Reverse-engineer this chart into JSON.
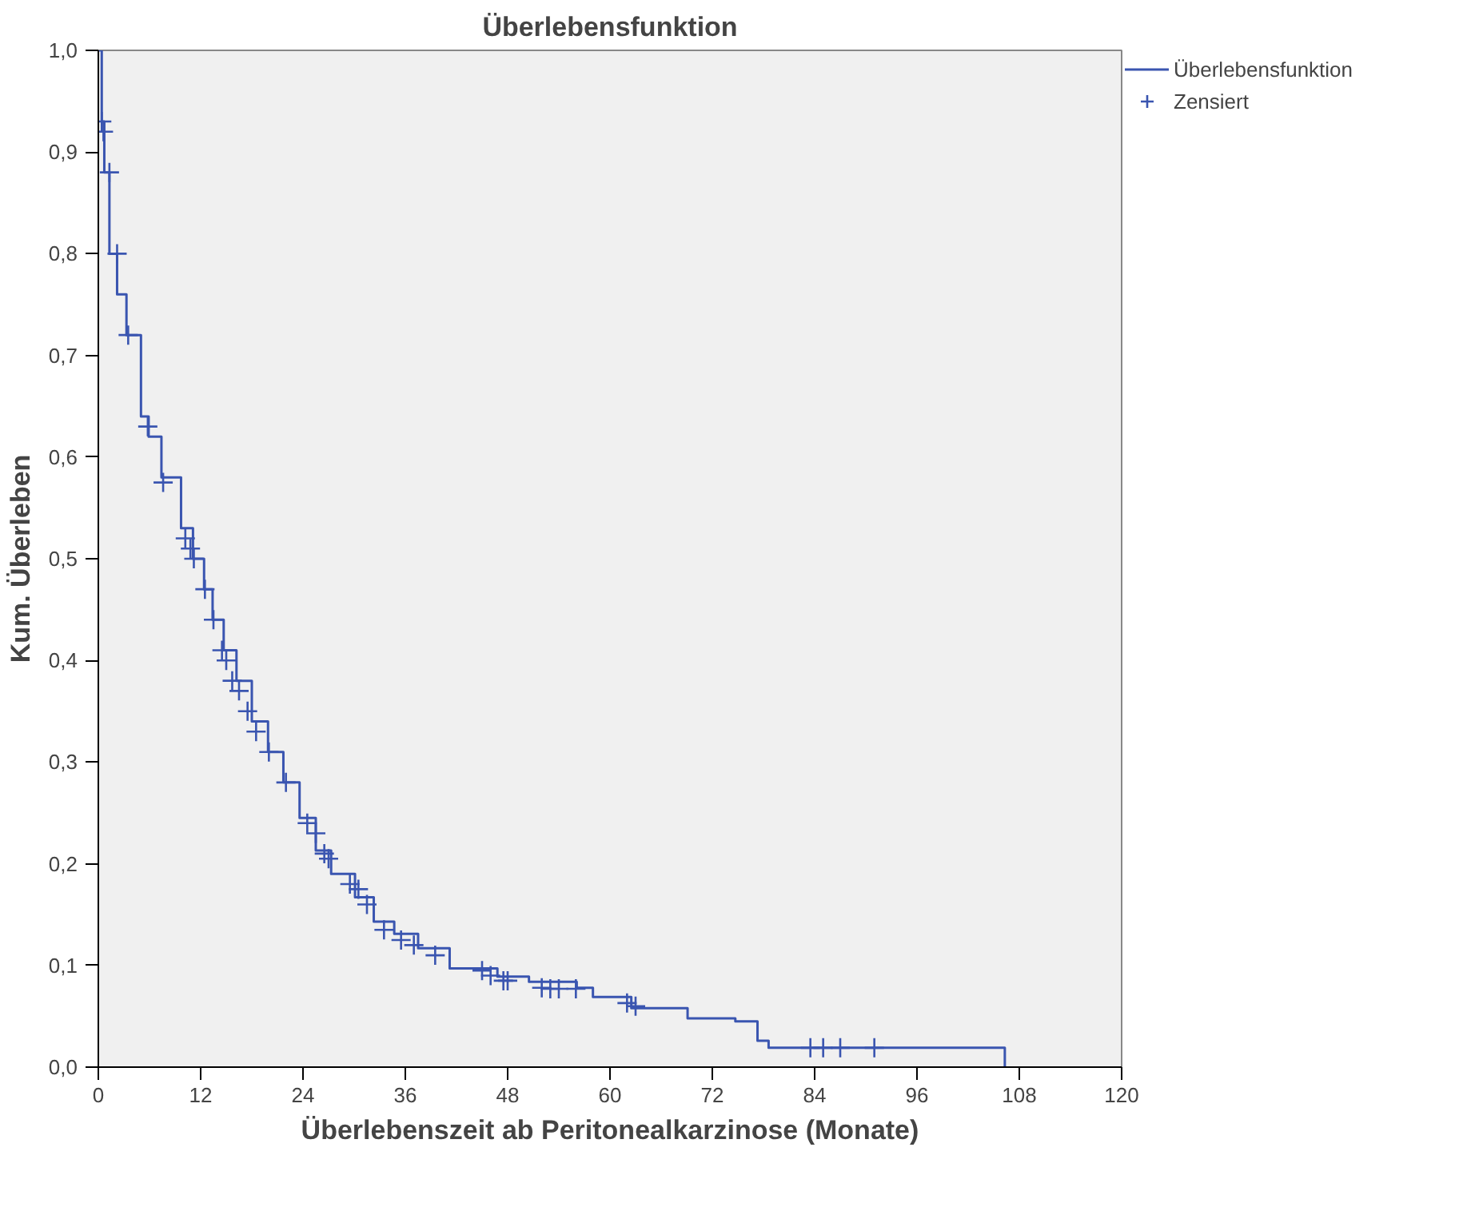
{
  "chart_data": {
    "type": "step",
    "title": "Überlebensfunktion",
    "xlabel": "Überlebenszeit ab Peritonealkarzinose (Monate)",
    "ylabel": "Kum. Überleben",
    "xlim": [
      0,
      120
    ],
    "xticks": [
      0,
      12,
      24,
      36,
      48,
      60,
      72,
      84,
      96,
      108,
      120
    ],
    "ylim": [
      0,
      1
    ],
    "yticks": [
      {
        "value": 0,
        "label": "0,0"
      },
      {
        "value": 0.1,
        "label": "0,1"
      },
      {
        "value": 0.2,
        "label": "0,2"
      },
      {
        "value": 0.3,
        "label": "0,3"
      },
      {
        "value": 0.4,
        "label": "0,4"
      },
      {
        "value": 0.5,
        "label": "0,5"
      },
      {
        "value": 0.6,
        "label": "0,6"
      },
      {
        "value": 0.7,
        "label": "0,7"
      },
      {
        "value": 0.8,
        "label": "0,8"
      },
      {
        "value": 0.9,
        "label": "0,9"
      },
      {
        "value": 1,
        "label": "1,0"
      }
    ],
    "grid": false,
    "legend": "top right",
    "series": [
      {
        "name": "Überlebensfunktion",
        "color": "#3a55b0",
        "line_style": "solid",
        "x": [
          0,
          0.4,
          0.7,
          1.3,
          2.2,
          3.3,
          5.0,
          5.9,
          7.4,
          9.7,
          11.1,
          12.4,
          13.4,
          14.7,
          16.2,
          18.0,
          19.9,
          21.7,
          23.6,
          25.5,
          27.3,
          30.1,
          32.3,
          34.7,
          37.5,
          41.2,
          46.8,
          50.5,
          56.1,
          58.0,
          62.5,
          69.1,
          74.7,
          77.3,
          78.6,
          106.3
        ],
        "values": [
          1.0,
          0.93,
          0.88,
          0.8,
          0.76,
          0.72,
          0.64,
          0.62,
          0.58,
          0.53,
          0.5,
          0.47,
          0.44,
          0.41,
          0.38,
          0.34,
          0.31,
          0.28,
          0.245,
          0.213,
          0.19,
          0.167,
          0.143,
          0.131,
          0.117,
          0.097,
          0.089,
          0.084,
          0.078,
          0.069,
          0.058,
          0.048,
          0.045,
          0.026,
          0.019,
          0.0
        ]
      },
      {
        "name": "Zensiert",
        "type": "scatter",
        "marker": "cross",
        "color": "#3a55b0",
        "x": [
          0.4,
          0.6,
          1.3,
          2.2,
          3.5,
          5.8,
          7.6,
          10.2,
          10.8,
          11.2,
          12.5,
          13.5,
          14.5,
          15,
          15.7,
          16.5,
          17.5,
          18.5,
          20,
          22,
          24.5,
          25.5,
          26.5,
          27,
          29.5,
          30.5,
          31.5,
          33.5,
          35.5,
          37,
          39.5,
          45,
          46,
          47.5,
          48,
          52,
          53,
          54,
          56,
          62,
          63,
          83.5,
          85,
          87,
          91
        ],
        "values": [
          0.93,
          0.92,
          0.88,
          0.8,
          0.72,
          0.63,
          0.575,
          0.52,
          0.51,
          0.5,
          0.47,
          0.44,
          0.41,
          0.4,
          0.38,
          0.37,
          0.35,
          0.33,
          0.31,
          0.28,
          0.24,
          0.23,
          0.21,
          0.205,
          0.18,
          0.175,
          0.16,
          0.135,
          0.125,
          0.12,
          0.11,
          0.095,
          0.09,
          0.085,
          0.085,
          0.078,
          0.077,
          0.077,
          0.077,
          0.063,
          0.06,
          0.019,
          0.019,
          0.019,
          0.019
        ]
      }
    ]
  }
}
